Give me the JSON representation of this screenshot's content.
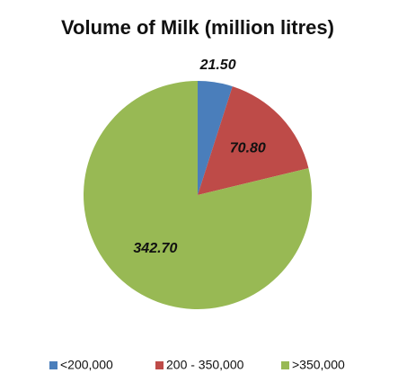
{
  "chart_data": {
    "type": "pie",
    "title": "Volume of Milk (million litres)",
    "categories": [
      "<200,000",
      "200 - 350,000",
      ">350,000"
    ],
    "values": [
      21.5,
      70.8,
      342.7
    ],
    "value_labels": [
      "21.50",
      "70.80",
      "342.70"
    ],
    "colors": [
      "#4a7ebb",
      "#be4b48",
      "#98b954"
    ],
    "legend": "bottom"
  }
}
